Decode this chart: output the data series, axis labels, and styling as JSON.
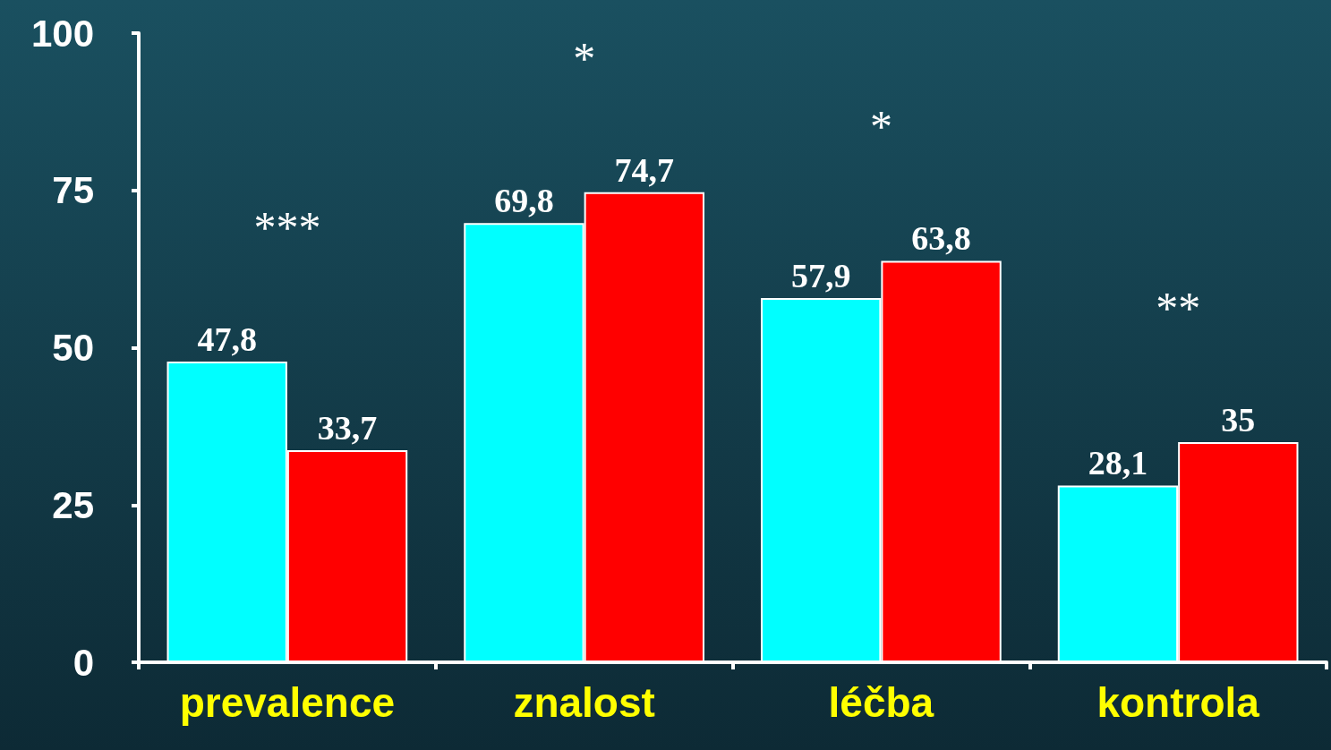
{
  "chart_data": {
    "type": "bar",
    "categories": [
      "prevalence",
      "znalost",
      "léčba",
      "kontrola"
    ],
    "series": [
      {
        "color": "#00ffff",
        "values": [
          47.8,
          69.8,
          57.9,
          28.1
        ],
        "value_labels": [
          "47,8",
          "69,8",
          "57,9",
          "28,1"
        ]
      },
      {
        "color": "#ff0000",
        "values": [
          33.7,
          74.7,
          63.8,
          35
        ],
        "value_labels": [
          "33,7",
          "74,7",
          "63,8",
          "35"
        ]
      }
    ],
    "ylim": [
      0,
      100
    ],
    "yticks": [
      0,
      25,
      50,
      75,
      100
    ],
    "grid": false,
    "annotations": [
      "***",
      "*",
      "*",
      "**"
    ]
  }
}
